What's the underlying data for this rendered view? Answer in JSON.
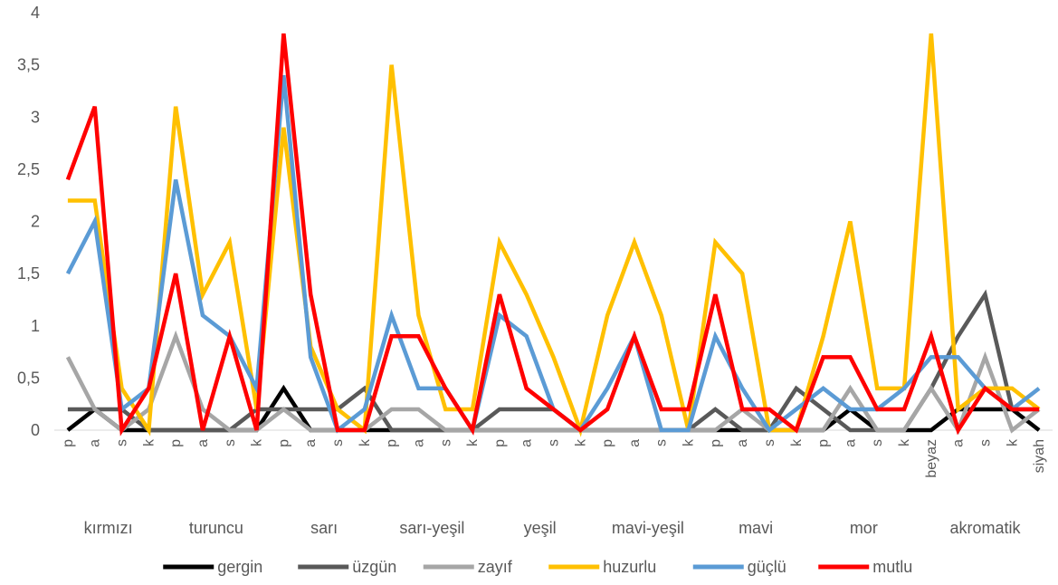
{
  "chart_data": {
    "type": "line",
    "ylim": [
      0,
      4
    ],
    "y_ticks": [
      "0",
      "0,5",
      "1",
      "1,5",
      "2",
      "2,5",
      "3",
      "3,5",
      "4"
    ],
    "grid": false,
    "legend_position": "bottom",
    "categories": [
      "p",
      "a",
      "s",
      "k",
      "p",
      "a",
      "s",
      "k",
      "p",
      "a",
      "s",
      "k",
      "p",
      "a",
      "s",
      "k",
      "p",
      "a",
      "s",
      "k",
      "p",
      "a",
      "s",
      "k",
      "p",
      "a",
      "s",
      "k",
      "p",
      "a",
      "s",
      "k",
      "beyaz",
      "a",
      "s",
      "k",
      "siyah"
    ],
    "groups": [
      {
        "label": "kırmızı",
        "start": 0,
        "end": 3
      },
      {
        "label": "turuncu",
        "start": 4,
        "end": 7
      },
      {
        "label": "sarı",
        "start": 8,
        "end": 11
      },
      {
        "label": "sarı-yeşil",
        "start": 12,
        "end": 15
      },
      {
        "label": "yeşil",
        "start": 16,
        "end": 19
      },
      {
        "label": "mavi-yeşil",
        "start": 20,
        "end": 23
      },
      {
        "label": "mavi",
        "start": 24,
        "end": 27
      },
      {
        "label": "mor",
        "start": 28,
        "end": 31
      },
      {
        "label": "akromatik",
        "start": 32,
        "end": 36
      }
    ],
    "series": [
      {
        "name": "gergin",
        "color": "#000000",
        "values": [
          0,
          0.2,
          0,
          0,
          0,
          0,
          0,
          0,
          0.4,
          0,
          0,
          0,
          0,
          0,
          0,
          0,
          0,
          0,
          0,
          0,
          0,
          0,
          0,
          0,
          0,
          0,
          0,
          0,
          0,
          0.2,
          0,
          0,
          0,
          0.2,
          0.2,
          0.2,
          0
        ]
      },
      {
        "name": "üzgün",
        "color": "#595959",
        "values": [
          0.2,
          0.2,
          0.2,
          0,
          0,
          0,
          0,
          0.2,
          0.2,
          0.2,
          0.2,
          0.4,
          0,
          0,
          0,
          0,
          0.2,
          0.2,
          0.2,
          0,
          0,
          0,
          0,
          0,
          0.2,
          0,
          0,
          0.4,
          0.2,
          0,
          0,
          0,
          0.4,
          0.9,
          1.3,
          0.2,
          0.2
        ]
      },
      {
        "name": "zayıf",
        "color": "#a6a6a6",
        "values": [
          0.7,
          0.2,
          0,
          0.2,
          0.9,
          0.2,
          0,
          0,
          0.2,
          0,
          0,
          0,
          0.2,
          0.2,
          0,
          0,
          0,
          0,
          0,
          0,
          0,
          0,
          0,
          0,
          0,
          0.2,
          0,
          0,
          0,
          0.4,
          0,
          0,
          0.4,
          0,
          0.7,
          0,
          0.2
        ]
      },
      {
        "name": "huzurlu",
        "color": "#ffc000",
        "values": [
          2.2,
          2.2,
          0.4,
          0,
          3.1,
          1.3,
          1.8,
          0.2,
          2.9,
          0.8,
          0.2,
          0,
          3.5,
          1.1,
          0.2,
          0.2,
          1.8,
          1.3,
          0.7,
          0,
          1.1,
          1.8,
          1.1,
          0,
          1.8,
          1.5,
          0,
          0,
          0.9,
          2.0,
          0.4,
          0.4,
          3.8,
          0.2,
          0.4,
          0.4,
          0.2
        ]
      },
      {
        "name": "güçlü",
        "color": "#5b9bd5",
        "values": [
          1.5,
          2.0,
          0.2,
          0.4,
          2.4,
          1.1,
          0.9,
          0.4,
          3.4,
          0.7,
          0,
          0.2,
          1.1,
          0.4,
          0.4,
          0,
          1.1,
          0.9,
          0.2,
          0,
          0.4,
          0.9,
          0,
          0,
          0.9,
          0.4,
          0,
          0.2,
          0.4,
          0.2,
          0.2,
          0.4,
          0.7,
          0.7,
          0.4,
          0.2,
          0.4
        ]
      },
      {
        "name": "mutlu",
        "color": "#ff0000",
        "values": [
          2.4,
          3.1,
          0,
          0.4,
          1.5,
          0,
          0.9,
          0,
          3.8,
          1.3,
          0,
          0,
          0.9,
          0.9,
          0.4,
          0,
          1.3,
          0.4,
          0.2,
          0,
          0.2,
          0.9,
          0.2,
          0.2,
          1.3,
          0.2,
          0.2,
          0,
          0.7,
          0.7,
          0.2,
          0.2,
          0.9,
          0,
          0.4,
          0.2,
          0.2
        ]
      }
    ]
  }
}
